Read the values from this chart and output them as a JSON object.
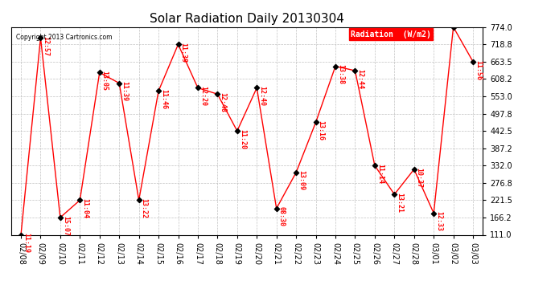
{
  "title": "Solar Radiation Daily 20130304",
  "copyright_text": "Copyright 2013 Cartronics.com",
  "legend_label": "Radiation  (W/m2)",
  "dates": [
    "02/08",
    "02/09",
    "02/10",
    "02/11",
    "02/12",
    "02/13",
    "02/14",
    "02/15",
    "02/16",
    "02/17",
    "02/18",
    "02/19",
    "02/20",
    "02/21",
    "02/22",
    "02/23",
    "02/24",
    "02/25",
    "02/26",
    "02/27",
    "02/28",
    "03/01",
    "03/02",
    "03/03"
  ],
  "values": [
    111.0,
    740.0,
    166.2,
    221.5,
    629.0,
    595.0,
    221.5,
    570.0,
    718.8,
    580.0,
    560.0,
    442.5,
    580.0,
    195.0,
    310.0,
    470.0,
    649.0,
    635.0,
    332.0,
    240.0,
    320.0,
    180.0,
    774.0,
    663.5
  ],
  "time_labels": [
    "11:19",
    "12:57",
    "15:07",
    "11:04",
    "13:05",
    "11:39",
    "13:22",
    "11:46",
    "11:39",
    "12:20",
    "12:48",
    "11:20",
    "12:40",
    "08:30",
    "13:09",
    "13:16",
    "13:38",
    "12:44",
    "11:14",
    "13:21",
    "10:37",
    "12:33",
    "",
    "11:56"
  ],
  "line_color": "#FF0000",
  "marker_color": "#000000",
  "background_color": "#FFFFFF",
  "grid_color": "#BBBBBB",
  "legend_bg": "#FF0000",
  "legend_fg": "#FFFFFF",
  "label_color": "#FF0000",
  "ylim": [
    111.0,
    774.0
  ],
  "yticks": [
    111.0,
    166.2,
    221.5,
    276.8,
    332.0,
    387.2,
    442.5,
    497.8,
    553.0,
    608.2,
    663.5,
    718.8,
    774.0
  ],
  "title_fontsize": 11,
  "label_fontsize": 6.0,
  "tick_fontsize": 7.0
}
